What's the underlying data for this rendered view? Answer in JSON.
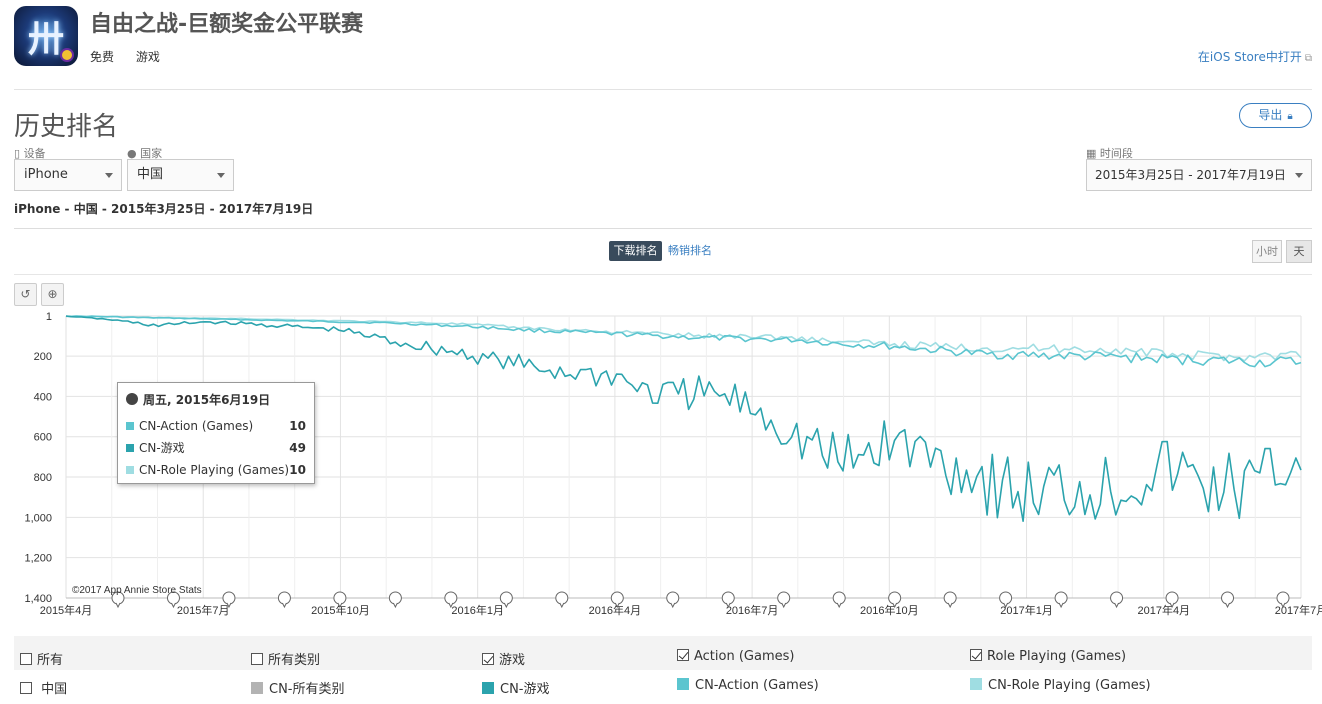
{
  "app": {
    "title": "自由之战-巨额奖金公平联赛",
    "price": "免费",
    "category": "游戏",
    "open_store": "在iOS Store中打开",
    "icon_glyph": "卅"
  },
  "page": {
    "section_title": "历史排名",
    "export_label": "导出"
  },
  "filters": {
    "device_label": "设备",
    "device_value": "iPhone",
    "country_label": "国家",
    "country_value": "中国",
    "period_label": "时间段",
    "period_value": "2015年3月25日 - 2017年7月19日"
  },
  "summary": "iPhone - 中国 - 2015年3月25日 - 2017年7月19日",
  "tabs": {
    "active": "下载排名",
    "inactive": "畅销排名"
  },
  "granularity": {
    "hour": "小时",
    "day": "天"
  },
  "colors": {
    "action": "#5bc5cf",
    "games": "#2ba3ad",
    "roleplaying": "#9fdde2",
    "all": "#b3b3b3",
    "link": "#3a7fc1"
  },
  "tooltip": {
    "date": "周五, 2015年6月19日",
    "rows": [
      {
        "name": "CN-Action (Games)",
        "value": "10"
      },
      {
        "name": "CN-游戏",
        "value": "49"
      },
      {
        "name": "CN-Role Playing (Games)",
        "value": "10"
      }
    ]
  },
  "chart_data": {
    "type": "line",
    "y_inverted": true,
    "ylim": [
      1,
      1400
    ],
    "y_ticks": [
      "1",
      "200",
      "400",
      "600",
      "800",
      "1,000",
      "1,200",
      "1,400"
    ],
    "x_ticks": [
      "2015年4月",
      "2015年7月",
      "2015年10月",
      "2016年1月",
      "2016年4月",
      "2016年7月",
      "2016年10月",
      "2017年1月",
      "2017年4月",
      "2017年7月"
    ],
    "x": [
      "2015-04",
      "2015-05",
      "2015-06",
      "2015-07",
      "2015-08",
      "2015-09",
      "2015-10",
      "2015-11",
      "2015-12",
      "2016-01",
      "2016-02",
      "2016-03",
      "2016-04",
      "2016-05",
      "2016-06",
      "2016-07",
      "2016-08",
      "2016-09",
      "2016-10",
      "2016-11",
      "2016-12",
      "2017-01",
      "2017-02",
      "2017-03",
      "2017-04",
      "2017-05",
      "2017-06",
      "2017-07"
    ],
    "series": [
      {
        "name": "CN-Action (Games)",
        "color": "#5bc5cf",
        "values": [
          1,
          5,
          10,
          15,
          20,
          25,
          30,
          35,
          45,
          55,
          70,
          80,
          90,
          100,
          110,
          115,
          120,
          140,
          150,
          170,
          190,
          195,
          200,
          205,
          215,
          220,
          230,
          230
        ]
      },
      {
        "name": "CN-游戏",
        "color": "#2ba3ad",
        "values": [
          1,
          20,
          49,
          30,
          40,
          55,
          70,
          120,
          160,
          200,
          250,
          280,
          300,
          400,
          380,
          450,
          600,
          750,
          620,
          700,
          800,
          900,
          850,
          850,
          750,
          850,
          850,
          700
        ]
      },
      {
        "name": "CN-Role Playing (Games)",
        "color": "#9fdde2",
        "values": [
          1,
          5,
          10,
          12,
          15,
          20,
          25,
          30,
          35,
          45,
          60,
          70,
          80,
          90,
          100,
          100,
          110,
          130,
          140,
          150,
          160,
          160,
          165,
          170,
          190,
          200,
          200,
          190
        ]
      }
    ],
    "annotation_count": 22,
    "grid": true,
    "credit": "©2017 App Annie Store Stats"
  },
  "legend": {
    "checkboxes": [
      {
        "label": "所有",
        "checked": false
      },
      {
        "label": "所有类别",
        "checked": false
      },
      {
        "label": "游戏",
        "checked": true
      },
      {
        "label": "Action (Games)",
        "checked": true
      },
      {
        "label": "Role Playing (Games)",
        "checked": true
      }
    ],
    "country_row": {
      "label": "中国",
      "checked": false
    },
    "series": [
      {
        "label": "CN-所有类别",
        "color": "#b3b3b3"
      },
      {
        "label": "CN-游戏",
        "color": "#2ba3ad"
      },
      {
        "label": "CN-Action (Games)",
        "color": "#5bc5cf"
      },
      {
        "label": "CN-Role Playing (Games)",
        "color": "#9fdde2"
      }
    ]
  }
}
